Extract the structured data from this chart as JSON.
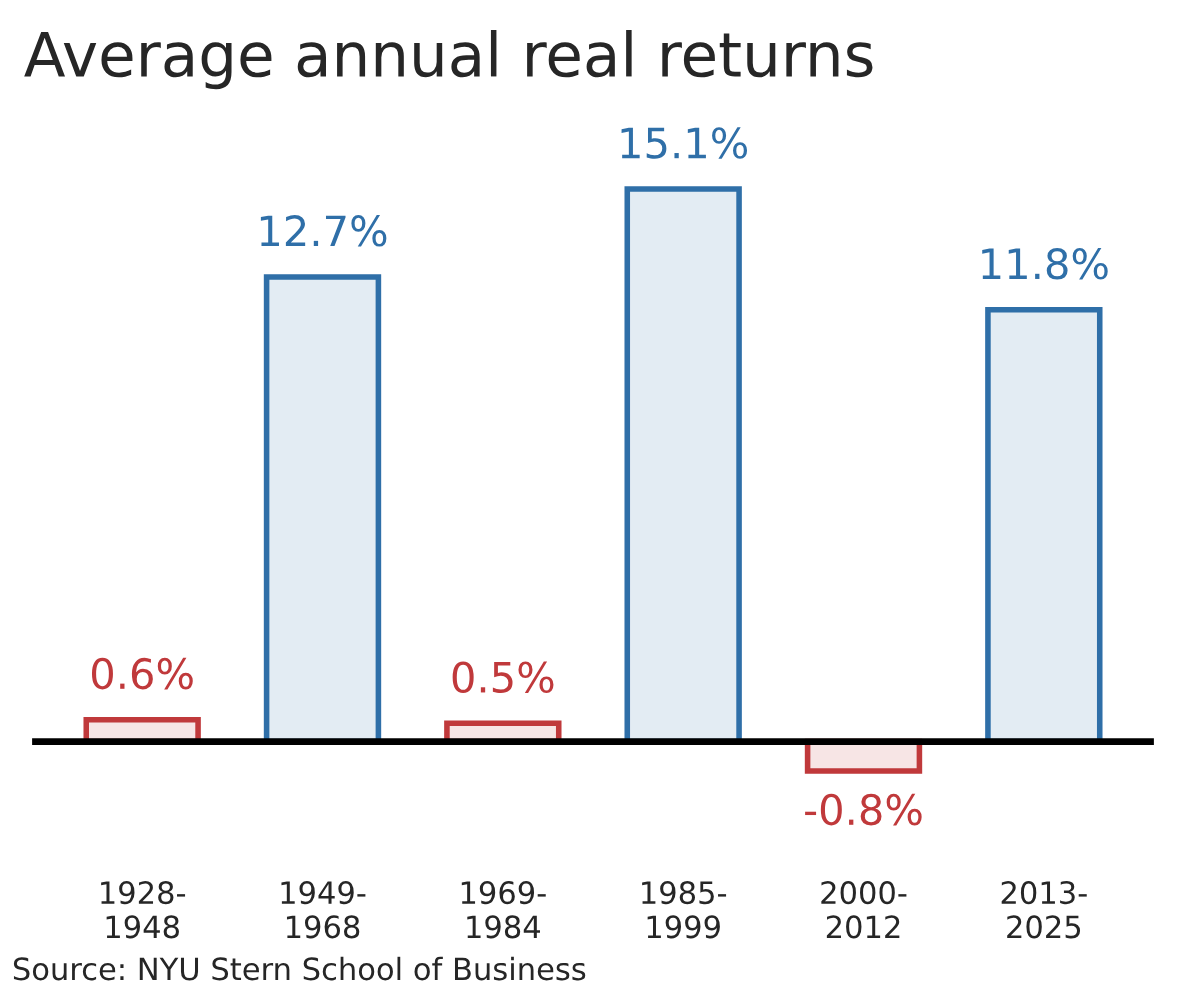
{
  "chart_data": {
    "type": "bar",
    "title": "Average annual real returns",
    "categories": [
      "1928-\n1948",
      "1949-\n1968",
      "1969-\n1984",
      "1985-\n1999",
      "2000-\n2012",
      "2013-\n2025"
    ],
    "values": [
      0.6,
      12.7,
      0.5,
      15.1,
      -0.8,
      11.8
    ],
    "value_labels": [
      "0.6%",
      "12.7%",
      "0.5%",
      "15.1%",
      "-0.8%",
      "11.8%"
    ],
    "colors": [
      "#c0393b",
      "#2f6fa8",
      "#c0393b",
      "#2f6fa8",
      "#c0393b",
      "#2f6fa8"
    ],
    "annotations": [
      "Source: NYU Stern School of Business"
    ],
    "grid": false,
    "legend": false
  }
}
